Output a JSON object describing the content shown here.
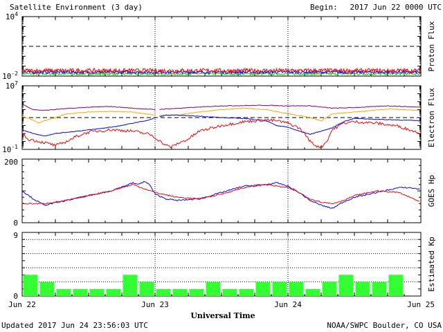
{
  "header": {
    "title": "Satellite Environment (3 day)",
    "begin_label": "Begin:",
    "begin_value": "2017 Jun 22 0000 UTC"
  },
  "footer": {
    "updated": "Updated 2017 Jun 24 23:56:03 UTC",
    "credit": "NOAA/SWPC Boulder, CO USA"
  },
  "chart_data": [
    {
      "type": "line",
      "ylabel": "Proton Flux",
      "y_scale": "log",
      "ylim": [
        0.01,
        10000
      ],
      "ytick_labels": {
        "top": "10",
        "top_exp": "4",
        "bottom": "10",
        "bottom_exp": "-2"
      },
      "threshold": 10,
      "x_range_hours": [
        0,
        72
      ],
      "colors": {
        "red": "#ff0000",
        "blue": "#0000ff",
        "green": "#00dd00",
        "threshold": "#000000"
      },
      "series": [
        {
          "color": "red",
          "x": [
            0,
            72
          ],
          "y": [
            0.035,
            0.035
          ]
        },
        {
          "color": "blue",
          "x": [
            0,
            72
          ],
          "y": [
            0.025,
            0.025
          ]
        },
        {
          "color": "green",
          "x": [
            0,
            72
          ],
          "y": [
            0.017,
            0.017
          ]
        }
      ]
    },
    {
      "type": "line",
      "ylabel": "Electron Flux",
      "y_scale": "log",
      "ylim": [
        0.1,
        10000000
      ],
      "ytick_labels": {
        "top": "10",
        "top_exp": "7",
        "bottom": "10",
        "bottom_exp": "-1"
      },
      "threshold": 1000,
      "x_range_hours": [
        0,
        72
      ],
      "colors": {
        "purple": "#800080",
        "orange": "#ffa500",
        "blue": "#0000ff",
        "red": "#ff0000",
        "threshold": "#000000"
      },
      "series": [
        {
          "color": "purple",
          "x": [
            0,
            2,
            4,
            7,
            12,
            16,
            20,
            24,
            36,
            44,
            48,
            52,
            56,
            60,
            66,
            72
          ],
          "y": [
            50000,
            10000,
            8000,
            12000,
            20000,
            25000,
            15000,
            10000,
            30000,
            35000,
            30000,
            30000,
            15000,
            18000,
            30000,
            20000
          ]
        },
        {
          "color": "orange",
          "x": [
            0,
            2,
            3,
            4,
            6,
            8,
            12,
            16,
            20,
            24,
            28,
            32,
            36,
            40,
            44,
            48,
            52,
            54,
            56,
            60,
            66,
            72
          ],
          "y": [
            1500,
            500,
            200,
            400,
            1000,
            3000,
            5000,
            6000,
            5000,
            2000,
            2000,
            5000,
            10000,
            15000,
            10000,
            3000,
            1000,
            400,
            3000,
            5000,
            12000,
            8000
          ]
        },
        {
          "color": "blue",
          "x": [
            0,
            2,
            4,
            6,
            10,
            14,
            18,
            20,
            23,
            24,
            26,
            28,
            32,
            36,
            40,
            44,
            46,
            48,
            50,
            52,
            54,
            56,
            58,
            60,
            64,
            68,
            72
          ],
          "y": [
            30,
            10,
            5,
            10,
            20,
            40,
            100,
            200,
            500,
            1000,
            2000,
            2000,
            1500,
            1000,
            800,
            400,
            100,
            60,
            20,
            8,
            20,
            50,
            300,
            800,
            600,
            500,
            400
          ]
        },
        {
          "color": "red",
          "x": [
            0,
            1,
            3,
            5,
            6,
            7,
            8,
            10,
            12,
            16,
            20,
            23,
            24,
            25,
            26,
            27,
            28,
            30,
            32,
            36,
            40,
            44,
            46,
            48,
            50,
            51,
            52,
            53,
            54,
            55,
            56,
            58,
            60,
            64,
            68,
            72
          ],
          "y": [
            10,
            2,
            1,
            0.5,
            0.3,
            0.5,
            1,
            5,
            15,
            30,
            20,
            8,
            3,
            1,
            0.3,
            0.2,
            0.5,
            2,
            20,
            100,
            300,
            500,
            400,
            200,
            50,
            10,
            1,
            0.3,
            0.2,
            1,
            30,
            200,
            300,
            200,
            80,
            10
          ]
        }
      ]
    },
    {
      "type": "line",
      "ylabel": "GOES Hp",
      "ylim": [
        0,
        200
      ],
      "yticks": [
        "0",
        "200"
      ],
      "x_range_hours": [
        0,
        72
      ],
      "colors": {
        "blue": "#0000ff",
        "red": "#ff0000"
      },
      "series": [
        {
          "color": "blue",
          "x": [
            0,
            2,
            4,
            8,
            12,
            16,
            20,
            21,
            22,
            23,
            24,
            26,
            28,
            32,
            36,
            40,
            44,
            46,
            48,
            50,
            52,
            54,
            56,
            58,
            60,
            64,
            68,
            70,
            72
          ],
          "y": [
            100,
            75,
            55,
            70,
            85,
            100,
            125,
            120,
            130,
            120,
            90,
            75,
            70,
            75,
            95,
            115,
            120,
            125,
            115,
            95,
            70,
            55,
            45,
            65,
            80,
            95,
            110,
            110,
            105
          ]
        },
        {
          "color": "red",
          "x": [
            0,
            2,
            4,
            8,
            12,
            16,
            20,
            24,
            28,
            32,
            36,
            40,
            44,
            46,
            48,
            50,
            52,
            54,
            56,
            58,
            60,
            64,
            68,
            70,
            72
          ],
          "y": [
            60,
            60,
            60,
            70,
            85,
            100,
            120,
            95,
            80,
            75,
            90,
            110,
            120,
            115,
            110,
            95,
            75,
            65,
            60,
            70,
            85,
            100,
            95,
            80,
            65
          ]
        }
      ]
    },
    {
      "type": "bar",
      "ylabel": "Estimated Kp",
      "ylim": [
        0,
        9
      ],
      "yticks": [
        "0",
        "9"
      ],
      "x_range_hours": [
        0,
        72
      ],
      "colors": {
        "bar": "#33ff33"
      },
      "values": [
        3,
        2,
        1,
        1,
        1,
        1,
        3,
        2,
        1,
        1,
        1,
        2,
        1,
        1,
        2,
        2,
        2,
        1,
        2,
        3,
        2,
        2,
        3
      ]
    }
  ],
  "x_axis": {
    "label": "Universal Time",
    "ticks": [
      "Jun 22",
      "Jun 23",
      "Jun 24",
      "Jun 25"
    ]
  }
}
